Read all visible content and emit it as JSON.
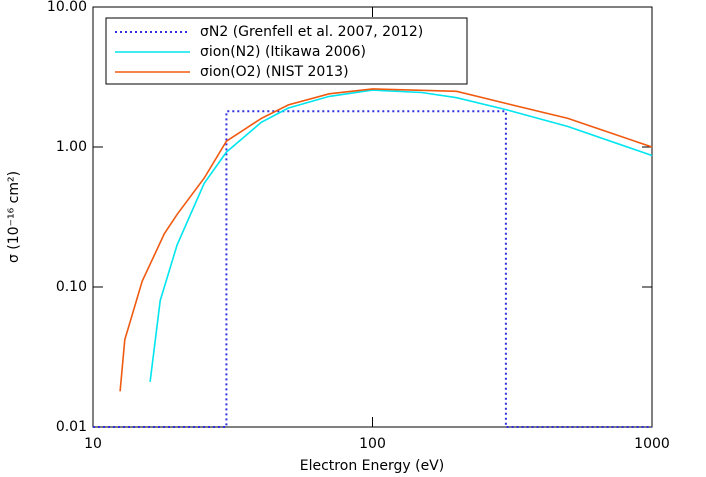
{
  "chart_data": {
    "type": "line",
    "xlabel": "Electron Energy (eV)",
    "ylabel": "σ (10⁻¹⁶ cm²)",
    "xscale": "log",
    "yscale": "log",
    "xlim": [
      10,
      1000
    ],
    "ylim": [
      0.01,
      10
    ],
    "xticks": [
      10,
      100,
      1000
    ],
    "yticks": [
      {
        "value": 10,
        "label": "10.00"
      },
      {
        "value": 1,
        "label": "1.00"
      },
      {
        "value": 0.1,
        "label": "0.10"
      },
      {
        "value": 0.01,
        "label": "0.01"
      }
    ],
    "legend": "top-left",
    "series": [
      {
        "name": "σN2 (Grenfell et al. 2007, 2012)",
        "color": "#3030e0",
        "style": "dotted",
        "x": [
          10,
          30,
          30,
          300,
          300,
          1000
        ],
        "values": [
          0.01,
          0.01,
          1.8,
          1.8,
          0.01,
          0.01
        ]
      },
      {
        "name": "σion(N2) (Itikawa 2006)",
        "color": "#00e5ee",
        "style": "solid",
        "x": [
          16,
          17.4,
          20,
          25,
          30,
          40,
          50,
          70,
          100,
          150,
          200,
          300,
          500,
          1000
        ],
        "values": [
          0.021,
          0.08,
          0.2,
          0.55,
          0.92,
          1.5,
          1.9,
          2.3,
          2.55,
          2.45,
          2.25,
          1.85,
          1.4,
          0.87
        ]
      },
      {
        "name": "σion(O2) (NIST 2013)",
        "color": "#f05a10",
        "style": "solid",
        "x": [
          12.5,
          13,
          15,
          18,
          20,
          25,
          30,
          40,
          50,
          70,
          100,
          200,
          300,
          500,
          1000
        ],
        "values": [
          0.018,
          0.042,
          0.11,
          0.24,
          0.33,
          0.6,
          1.1,
          1.6,
          2.0,
          2.4,
          2.6,
          2.5,
          2.05,
          1.6,
          1.0
        ]
      }
    ]
  }
}
